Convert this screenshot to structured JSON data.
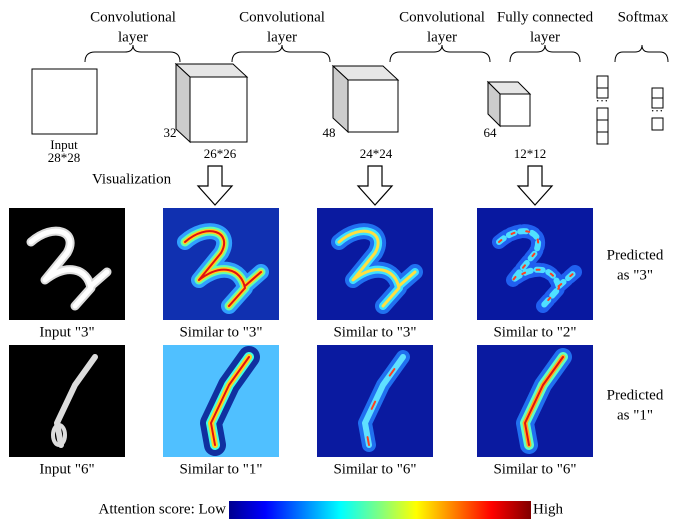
{
  "header_labels": [
    [
      "Convolutional",
      "layer"
    ],
    [
      "Convolutional",
      "layer"
    ],
    [
      "Convolutional",
      "layer"
    ],
    [
      "Fully connected",
      "layer"
    ],
    [
      "Softmax"
    ]
  ],
  "input_label": [
    "Input",
    "28*28"
  ],
  "feature_maps": [
    {
      "channels": 32,
      "size": "26*26"
    },
    {
      "channels": 48,
      "size": "24*24"
    },
    {
      "channels": 64,
      "size": "12*12"
    }
  ],
  "visualization_label": "Visualization",
  "rows": [
    {
      "captions": [
        "Input \"3\"",
        "Similar to \"3\"",
        "Similar to \"3\"",
        "Similar to \"2\""
      ],
      "prediction": [
        "Predicted",
        "as \"3\""
      ]
    },
    {
      "captions": [
        "Input \"6\"",
        "Similar to \"1\"",
        "Similar to \"6\"",
        "Similar to \"6\""
      ],
      "prediction": [
        "Predicted",
        "as \"1\""
      ]
    }
  ],
  "colorbar": {
    "low_label": "Attention score: Low",
    "high_label": "High"
  }
}
